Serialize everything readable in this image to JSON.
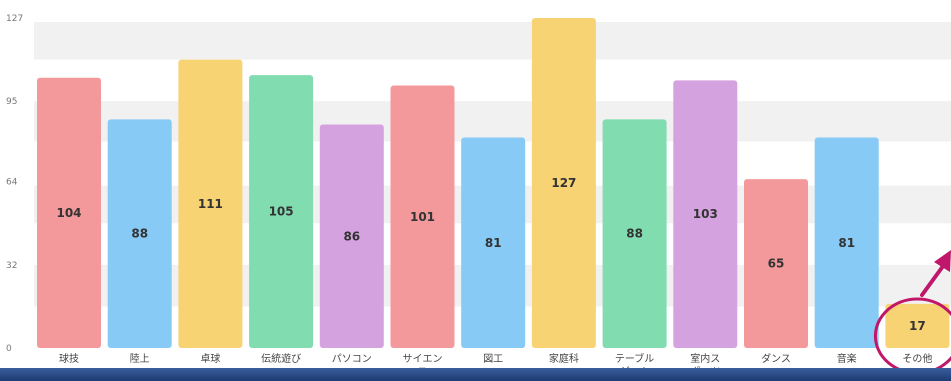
{
  "colors": {
    "grid_band": "#f1f1f1",
    "highlight": "#c0176b",
    "bottom_bar": "#24447e"
  },
  "highlight": {
    "category": "その他",
    "shape": "circle-with-arrow"
  },
  "chart_data": {
    "type": "bar",
    "title": "",
    "xlabel": "",
    "ylabel": "",
    "ylim": [
      0,
      127
    ],
    "yticks": [
      0,
      32,
      64,
      95,
      127
    ],
    "grid": "horizontal-bands",
    "categories": [
      "球技",
      "陸上",
      "卓球",
      "伝統遊び",
      "パソコン",
      "サイエンス",
      "図工",
      "家庭科",
      "テーブルゲーム",
      "室内スポーツ",
      "ダンス",
      "音楽",
      "その他"
    ],
    "tick_labels": [
      [
        "球技"
      ],
      [
        "陸上"
      ],
      [
        "卓球"
      ],
      [
        "伝統遊び"
      ],
      [
        "パソコン"
      ],
      [
        "サイエン",
        "ス"
      ],
      [
        "図工"
      ],
      [
        "家庭科"
      ],
      [
        "テーブル",
        "ゲーム"
      ],
      [
        "室内ス",
        "ポーツ"
      ],
      [
        "ダンス"
      ],
      [
        "音楽"
      ],
      [
        "その他"
      ]
    ],
    "values": [
      104,
      88,
      111,
      105,
      86,
      101,
      81,
      127,
      88,
      103,
      65,
      81,
      17
    ],
    "colors": [
      "#f4999b",
      "#86caf5",
      "#f8d374",
      "#81dcb0",
      "#d4a3df",
      "#f4999b",
      "#86caf5",
      "#f8d374",
      "#81dcb0",
      "#d4a3df",
      "#f4999b",
      "#86caf5",
      "#f8d374"
    ],
    "data_labels": [
      "104",
      "88",
      "111",
      "105",
      "86",
      "101",
      "81",
      "127",
      "88",
      "103",
      "65",
      "81",
      "17"
    ]
  }
}
